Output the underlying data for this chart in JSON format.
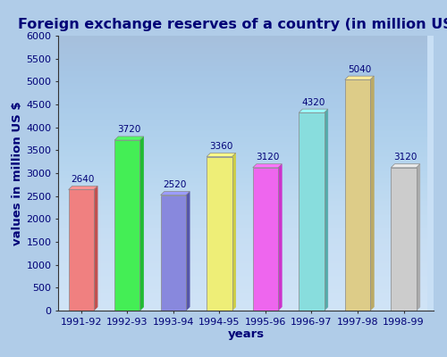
{
  "title": "Foreign exchange reserves of a country (in million US $)",
  "categories": [
    "1991-92",
    "1992-93",
    "1993-94",
    "1994-95",
    "1995-96",
    "1996-97",
    "1997-98",
    "1998-99"
  ],
  "values": [
    2640,
    3720,
    2520,
    3360,
    3120,
    4320,
    5040,
    3120
  ],
  "bar_colors": [
    "#F08080",
    "#44EE55",
    "#8888DD",
    "#EEEE77",
    "#EE66EE",
    "#88DDDD",
    "#DDCC88",
    "#CCCCCC"
  ],
  "bar_dark_colors": [
    "#C05050",
    "#22BB33",
    "#5555AA",
    "#CCCC44",
    "#CC33CC",
    "#55AAAA",
    "#BBAA66",
    "#AAAAAA"
  ],
  "xlabel": "years",
  "ylabel": "values in million US $",
  "ylim": [
    0,
    6000
  ],
  "yticks": [
    0,
    500,
    1000,
    1500,
    2000,
    2500,
    3000,
    3500,
    4000,
    4500,
    5000,
    5500,
    6000
  ],
  "title_fontsize": 11.5,
  "label_fontsize": 9.5,
  "tick_fontsize": 8,
  "value_fontsize": 7.5,
  "bg_color_outer": "#b0cce8",
  "bg_color_inner_top": "#c8dff5",
  "bg_color_inner_bottom": "#f0f5ff",
  "text_color": "#000077",
  "axis_color": "#333333"
}
